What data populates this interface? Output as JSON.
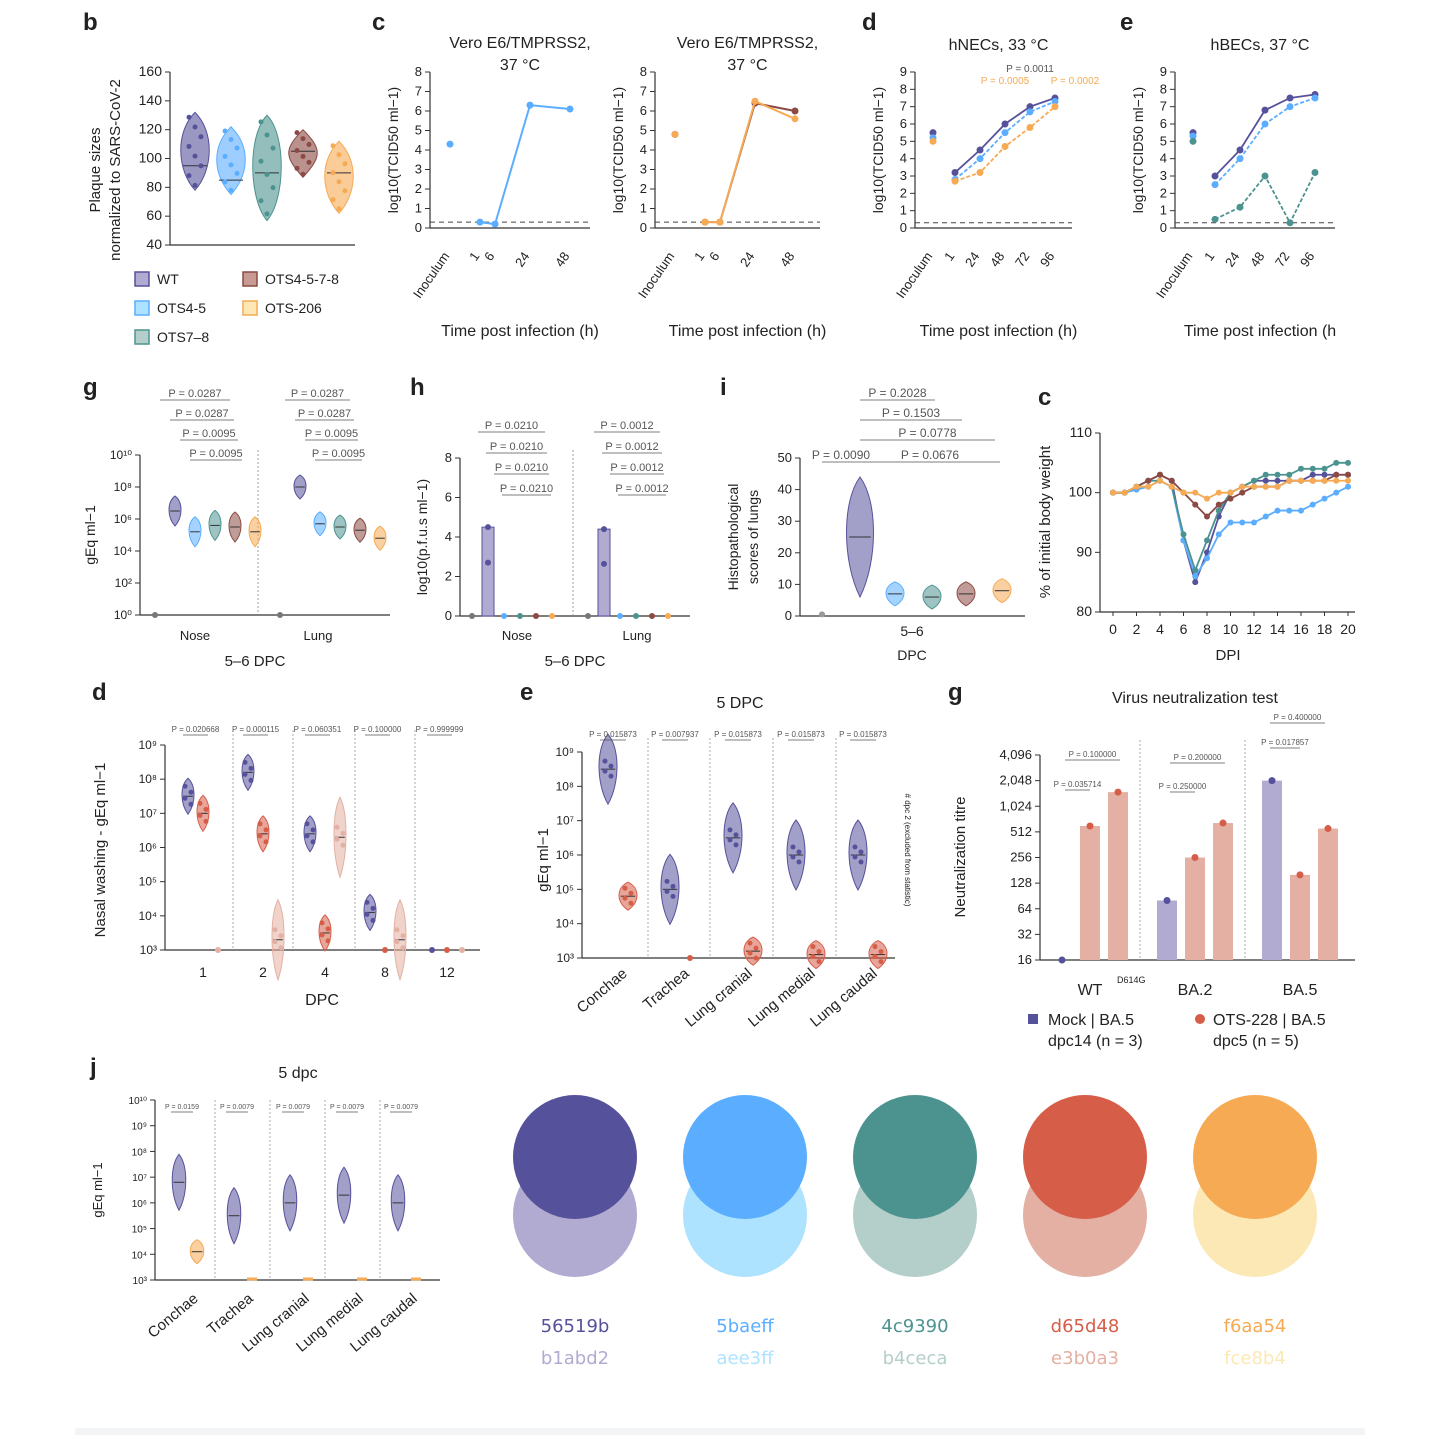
{
  "colors": {
    "wt": "#56519b",
    "wt_light": "#b1abd2",
    "ots45": "#5baeff",
    "ots45_light": "#aee3ff",
    "ots78": "#4c9390",
    "ots78_light": "#b4ceca",
    "ots4578": "#8b4a43",
    "ots4578_light": "#c79a93",
    "ots206": "#f6aa54",
    "ots206_light": "#fce8b4",
    "red": "#d65d48",
    "red_light": "#e3b0a3",
    "axis": "#333333",
    "pval": "#555555"
  },
  "chart_data": [
    {
      "id": "b",
      "panel_letter": "b",
      "type": "violin",
      "ylabel_line1": "Plaque sizes",
      "ylabel_line2": "normalized to SARS-CoV-2",
      "ylim": [
        40,
        160
      ],
      "yticks": [
        "40",
        "60",
        "80",
        "100",
        "120",
        "140",
        "160"
      ],
      "series": [
        {
          "name": "WT",
          "median": 95,
          "min": 78,
          "max": 132
        },
        {
          "name": "OTS4-5",
          "median": 85,
          "min": 75,
          "max": 122
        },
        {
          "name": "OTS7-8",
          "median": 90,
          "min": 57,
          "max": 130
        },
        {
          "name": "OTS4-5-7-8",
          "median": 105,
          "min": 87,
          "max": 120
        },
        {
          "name": "OTS-206",
          "median": 90,
          "min": 62,
          "max": 112
        }
      ],
      "legend": [
        "WT",
        "OTS4-5-7-8",
        "OTS4-5",
        "OTS-206",
        "OTS7–8"
      ]
    },
    {
      "id": "c",
      "panel_letter": "c",
      "type": "line",
      "subplots": [
        {
          "title_line1": "Vero E6/TMPRSS2,",
          "title_line2": "37 °C",
          "categories": [
            "Inoculum",
            "1",
            "6",
            "24",
            "48"
          ],
          "series": [
            {
              "name": "OTS4-5",
              "values": [
                4.3,
                0.3,
                0.2,
                6.3,
                6.1
              ]
            }
          ]
        },
        {
          "title_line1": "Vero E6/TMPRSS2,",
          "title_line2": "37 °C",
          "categories": [
            "Inoculum",
            "1",
            "6",
            "24",
            "48"
          ],
          "series": [
            {
              "name": "OTS4-5-7-8",
              "values": [
                4.8,
                0.3,
                0.3,
                6.4,
                6.0
              ]
            },
            {
              "name": "OTS-206",
              "values": [
                4.8,
                0.3,
                0.3,
                6.5,
                5.6
              ]
            }
          ]
        }
      ],
      "ylabel": "log10(TCID50 ml−1)",
      "ylim": [
        0,
        8
      ],
      "yticks": [
        "0",
        "1",
        "2",
        "3",
        "4",
        "5",
        "6",
        "7",
        "8"
      ],
      "xlabel": "Time post infection (h)"
    },
    {
      "id": "d_top",
      "panel_letter": "d",
      "type": "line",
      "title": "hNECs, 33 °C",
      "categories": [
        "Inoculum",
        "1",
        "24",
        "48",
        "72",
        "96"
      ],
      "series": [
        {
          "name": "WT",
          "values": [
            5.5,
            3.2,
            4.5,
            6.0,
            7.0,
            7.5
          ]
        },
        {
          "name": "OTS4-5",
          "values": [
            5.2,
            2.8,
            4.0,
            5.5,
            6.7,
            7.3
          ]
        },
        {
          "name": "OTS-206",
          "values": [
            5.0,
            2.7,
            3.2,
            4.7,
            5.8,
            7.0
          ]
        }
      ],
      "annotations": [
        "P = 0.0011",
        "P = 0.0005",
        "P = 0.0002"
      ],
      "ylabel": "log10(TCID50 ml−1)",
      "ylim": [
        0,
        9
      ],
      "yticks": [
        "0",
        "1",
        "2",
        "3",
        "4",
        "5",
        "6",
        "7",
        "8",
        "9"
      ],
      "xlabel": "Time post infection (h)"
    },
    {
      "id": "e_top",
      "panel_letter": "e",
      "type": "line",
      "title": "hBECs, 37 °C",
      "categories": [
        "Inoculum",
        "1",
        "24",
        "48",
        "72",
        "96"
      ],
      "series": [
        {
          "name": "WT",
          "values": [
            5.5,
            3.0,
            4.5,
            6.8,
            7.5,
            7.7
          ]
        },
        {
          "name": "OTS4-5",
          "values": [
            5.3,
            2.5,
            4.0,
            6.0,
            7.0,
            7.5
          ]
        },
        {
          "name": "OTS7-8",
          "values": [
            5.0,
            0.5,
            1.2,
            3.0,
            0.3,
            3.2
          ]
        }
      ],
      "ylabel": "log10(TCID50 ml−1)",
      "ylim": [
        0,
        9
      ],
      "yticks": [
        "0",
        "1",
        "2",
        "3",
        "4",
        "5",
        "6",
        "7",
        "8",
        "9"
      ],
      "xlabel": "Time post infection (h"
    },
    {
      "id": "g_mid",
      "panel_letter": "g",
      "type": "violin",
      "ylabel": "gEq ml−1",
      "xlabel": "5–6 DPC",
      "groups": [
        "Nose",
        "Lung"
      ],
      "yticks": [
        "10⁰",
        "10²",
        "10⁴",
        "10⁶",
        "10⁸",
        "10¹⁰"
      ],
      "ylim": [
        0,
        10
      ],
      "nose": [
        0,
        6.5,
        5.2,
        5.6,
        5.5,
        5.2
      ],
      "lung": [
        0,
        8.0,
        5.7,
        5.5,
        5.3,
        4.8
      ],
      "pvalues_nose": [
        "P = 0.0287",
        "P = 0.0287",
        "P = 0.0095",
        "P = 0.0095"
      ],
      "pvalues_lung": [
        "P = 0.0287",
        "P = 0.0287",
        "P = 0.0095",
        "P = 0.0095"
      ]
    },
    {
      "id": "h",
      "panel_letter": "h",
      "type": "bar",
      "ylabel": "log10(p.f.u.s ml−1)",
      "xlabel": "5–6 DPC",
      "groups": [
        "Nose",
        "Lung"
      ],
      "ylim": [
        0,
        8
      ],
      "yticks": [
        "0",
        "2",
        "4",
        "6",
        "8"
      ],
      "nose": [
        0,
        4.5,
        0,
        0,
        0,
        0
      ],
      "lung": [
        0,
        4.4,
        0,
        0,
        0,
        0
      ],
      "pvalues_nose": [
        "P = 0.0210",
        "P = 0.0210",
        "P = 0.0210",
        "P = 0.0210"
      ],
      "pvalues_lung": [
        "P = 0.0012",
        "P = 0.0012",
        "P = 0.0012",
        "P = 0.0012"
      ]
    },
    {
      "id": "i",
      "panel_letter": "i",
      "type": "violin",
      "ylabel_line1": "Histopathological",
      "ylabel_line2": "scores of lungs",
      "xlabel_line1": "5–6",
      "xlabel_line2": "DPC",
      "ylim": [
        0,
        50
      ],
      "yticks": [
        "0",
        "10",
        "20",
        "30",
        "40",
        "50"
      ],
      "values": [
        0.5,
        25,
        7,
        6,
        7,
        8
      ],
      "pvalues": [
        "P = 0.2028",
        "P = 0.1503",
        "P = 0.0778",
        "P = 0.0090",
        "P = 0.0676"
      ]
    },
    {
      "id": "c_weight",
      "panel_letter": "c",
      "type": "line",
      "ylabel": "% of initial body weight",
      "xlabel": "DPI",
      "ylim": [
        80,
        110
      ],
      "yticks": [
        "80",
        "90",
        "100",
        "110"
      ],
      "xticks": [
        "0",
        "2",
        "4",
        "6",
        "8",
        "10",
        "12",
        "14",
        "16",
        "18",
        "20"
      ],
      "x": [
        0,
        1,
        2,
        3,
        4,
        5,
        6,
        7,
        8,
        9,
        10,
        11,
        12,
        13,
        14,
        15,
        16,
        17,
        18,
        19,
        20
      ],
      "series": [
        {
          "name": "WT",
          "values": [
            100,
            100,
            101,
            102,
            103,
            102,
            92,
            85,
            90,
            96,
            100,
            101,
            102,
            102,
            102,
            102,
            102,
            103,
            103,
            103,
            103
          ]
        },
        {
          "name": "OTS4-5",
          "values": [
            100,
            100,
            100.5,
            101,
            102,
            101,
            92,
            86,
            89,
            93,
            95,
            95,
            95,
            96,
            97,
            97,
            97,
            98,
            99,
            100,
            101
          ]
        },
        {
          "name": "OTS7-8",
          "values": [
            100,
            100,
            101,
            102,
            102,
            101,
            93,
            87,
            92,
            97,
            100,
            101,
            102,
            103,
            103,
            103,
            104,
            104,
            104,
            105,
            105
          ]
        },
        {
          "name": "OTS4-5-7-8",
          "values": [
            100,
            100,
            101,
            102,
            103,
            102,
            100,
            98,
            96,
            98,
            99,
            100,
            101,
            101,
            101,
            102,
            102,
            102,
            102,
            103,
            103
          ]
        },
        {
          "name": "OTS-206",
          "values": [
            100,
            100,
            101,
            101,
            102,
            101,
            100,
            100,
            99,
            100,
            100,
            101,
            101,
            101,
            101,
            102,
            102,
            102,
            102,
            102,
            102
          ]
        }
      ]
    },
    {
      "id": "d_nasal",
      "panel_letter": "d",
      "type": "violin",
      "ylabel": "Nasal washing - gEq ml−1",
      "xlabel": "DPC",
      "categories": [
        "1",
        "2",
        "4",
        "8",
        "12"
      ],
      "yticks": [
        "10³",
        "10⁴",
        "10⁵",
        "10⁶",
        "10⁷",
        "10⁸",
        "10⁹"
      ],
      "ylim": [
        3,
        9
      ],
      "series": [
        {
          "name": "purple",
          "values": [
            7.5,
            8.2,
            6.4,
            4.1,
            3.0
          ]
        },
        {
          "name": "red",
          "values": [
            7.0,
            6.4,
            3.5,
            3.0,
            3.0
          ]
        },
        {
          "name": "light",
          "values": [
            3.0,
            3.3,
            6.3,
            3.3,
            3.0
          ]
        }
      ],
      "pvalues": [
        "P = 0.020668",
        "P = 0.000115",
        "P = 0.060351",
        "P = 0.100000",
        "P = 0.999999"
      ]
    },
    {
      "id": "e_tissue",
      "panel_letter": "e",
      "type": "violin",
      "title": "5 DPC",
      "ylabel": "gEq ml−1",
      "categories": [
        "Conchae",
        "Trachea",
        "Lung cranial",
        "Lung medial",
        "Lung caudal"
      ],
      "yticks": [
        "10³",
        "10⁴",
        "10⁵",
        "10⁶",
        "10⁷",
        "10⁸",
        "10⁹"
      ],
      "ylim": [
        3,
        9
      ],
      "series": [
        {
          "name": "purple",
          "values": [
            8.5,
            5.0,
            6.5,
            6.0,
            6.0
          ]
        },
        {
          "name": "red",
          "values": [
            4.8,
            3.0,
            3.2,
            3.1,
            3.1
          ]
        }
      ],
      "pvalues": [
        "P = 0.015873",
        "P = 0.007937",
        "P = 0.015873",
        "P = 0.015873",
        "P = 0.015873"
      ],
      "side_note": "# dpc 2 (excluded from statistic)"
    },
    {
      "id": "g_vnt",
      "panel_letter": "g",
      "type": "bar",
      "title": "Virus neutralization test",
      "ylabel": "Neutralization titre",
      "categories": [
        "WT",
        "BA.2",
        "BA.5"
      ],
      "wt_superscript": "D614G",
      "yticks": [
        "16",
        "32",
        "64",
        "128",
        "256",
        "512",
        "1,024",
        "2,048",
        "4,096"
      ],
      "series": [
        {
          "name": "Mock | BA.5 dpc14 (n = 3)",
          "values": [
            16,
            80,
            2048
          ]
        },
        {
          "name": "OTS-228 | BA.5 dpc5 (n = 5) A",
          "values": [
            600,
            256,
            160
          ]
        },
        {
          "name": "OTS-228 | BA.5 dpc5 (n = 5) B",
          "values": [
            1500,
            650,
            560
          ]
        }
      ],
      "pvalues": [
        "P = 0.100000",
        "P = 0.035714",
        "P = 0.200000",
        "P = 0.250000",
        "P = 0.400000",
        "P = 0.017857"
      ],
      "legend_a_line1": "Mock | BA.5",
      "legend_a_line2": "dpc14 (n = 3)",
      "legend_b_line1": "OTS-228 | BA.5",
      "legend_b_line2": "dpc5 (n = 5)"
    },
    {
      "id": "j",
      "panel_letter": "j",
      "type": "violin",
      "title": "5 dpc",
      "ylabel": "gEq ml−1",
      "categories": [
        "Conchae",
        "Trachea",
        "Lung cranial",
        "Lung medial",
        "Lung caudal"
      ],
      "yticks": [
        "10³",
        "10⁴",
        "10⁵",
        "10⁶",
        "10⁷",
        "10⁸",
        "10⁹",
        "10¹⁰"
      ],
      "ylim": [
        3,
        10
      ],
      "series": [
        {
          "name": "purple",
          "values": [
            6.8,
            5.5,
            6.0,
            6.3,
            6.0
          ]
        },
        {
          "name": "orange",
          "values": [
            4.1,
            3.0,
            3.0,
            3.0,
            3.0
          ]
        }
      ],
      "pvalues": [
        "P = 0.0159",
        "P = 0.0079",
        "P = 0.0079",
        "P = 0.0079",
        "P = 0.0079"
      ]
    }
  ],
  "palette": [
    {
      "dark_hex": "#56519b",
      "light_hex": "#b1abd2",
      "dark_label": "56519b",
      "light_label": "b1abd2"
    },
    {
      "dark_hex": "#5baeff",
      "light_hex": "#aee3ff",
      "dark_label": "5baeff",
      "light_label": "aee3ff"
    },
    {
      "dark_hex": "#4c9390",
      "light_hex": "#b4ceca",
      "dark_label": "4c9390",
      "light_label": "b4ceca"
    },
    {
      "dark_hex": "#d65d48",
      "light_hex": "#e3b0a3",
      "dark_label": "d65d48",
      "light_label": "e3b0a3"
    },
    {
      "dark_hex": "#f6aa54",
      "light_hex": "#fce8b4",
      "dark_label": "f6aa54",
      "light_label": "fce8b4"
    }
  ]
}
